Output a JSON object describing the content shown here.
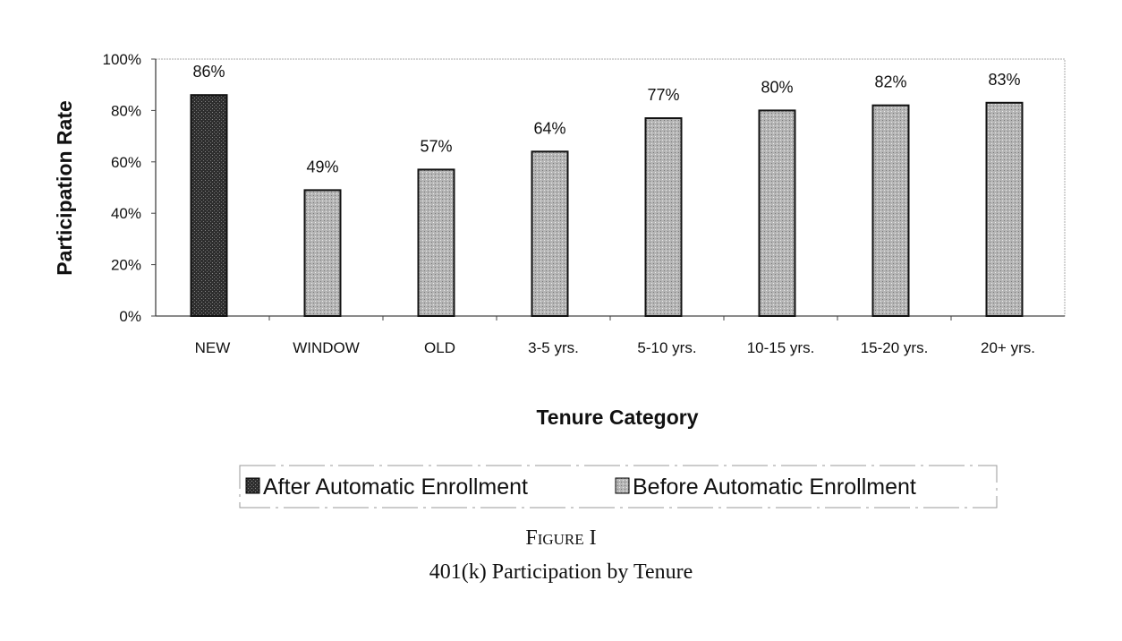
{
  "chart_data": {
    "type": "bar",
    "title": "401(k) Participation by Tenure",
    "figure_label": "Figure I",
    "xlabel": "Tenure Category",
    "ylabel": "Participation Rate",
    "ylim": [
      0,
      100
    ],
    "yticks": [
      "0%",
      "20%",
      "40%",
      "60%",
      "80%",
      "100%"
    ],
    "ytick_values": [
      0,
      20,
      40,
      60,
      80,
      100
    ],
    "categories": [
      "NEW",
      "WINDOW",
      "OLD",
      "3-5 yrs.",
      "5-10 yrs.",
      "10-15 yrs.",
      "15-20 yrs.",
      "20+ yrs."
    ],
    "values": [
      86,
      49,
      57,
      64,
      77,
      80,
      82,
      83
    ],
    "data_labels": [
      "86%",
      "49%",
      "57%",
      "64%",
      "77%",
      "80%",
      "82%",
      "83%"
    ],
    "series_of_bar": [
      0,
      1,
      1,
      1,
      1,
      1,
      1,
      1
    ],
    "series": [
      {
        "name": "After Automatic Enrollment",
        "color": "#3a3a3a"
      },
      {
        "name": "Before Automatic Enrollment",
        "color": "#b8b8b8"
      }
    ],
    "legend_position": "bottom",
    "grid": false
  }
}
